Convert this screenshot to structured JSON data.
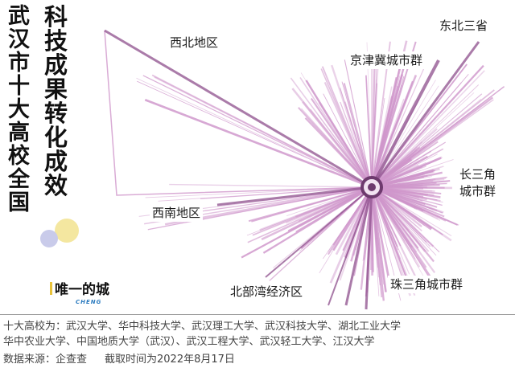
{
  "title": {
    "part1": "武汉市十大高校全国",
    "part2": "科技成果转化成效"
  },
  "logo": {
    "main": "唯一的城",
    "sub": "CHENG"
  },
  "regions": {
    "northwest": "西北地区",
    "northeast": "东北三省",
    "jingjinji": "京津冀城市群",
    "yangtze_line1": "长三角",
    "yangtze_line2": "城市群",
    "southwest": "西南地区",
    "beibu_gulf": "北部湾经济区",
    "pearl_river": "珠三角城市群"
  },
  "footer": {
    "line1": "十大高校为：武汉大学、华中科技大学、武汉理工大学、武汉科技大学、湖北工业大学",
    "line2": "华中农业大学、中国地质大学（武汉）、武汉工程大学、武汉轻工大学、江汉大学",
    "source": "数据来源：企查查",
    "time": "截取时间为2022年8月17日"
  },
  "colors": {
    "line": "#cf96cb",
    "line_dark": "#8e4f8c",
    "hub": "#6e3a6e"
  }
}
